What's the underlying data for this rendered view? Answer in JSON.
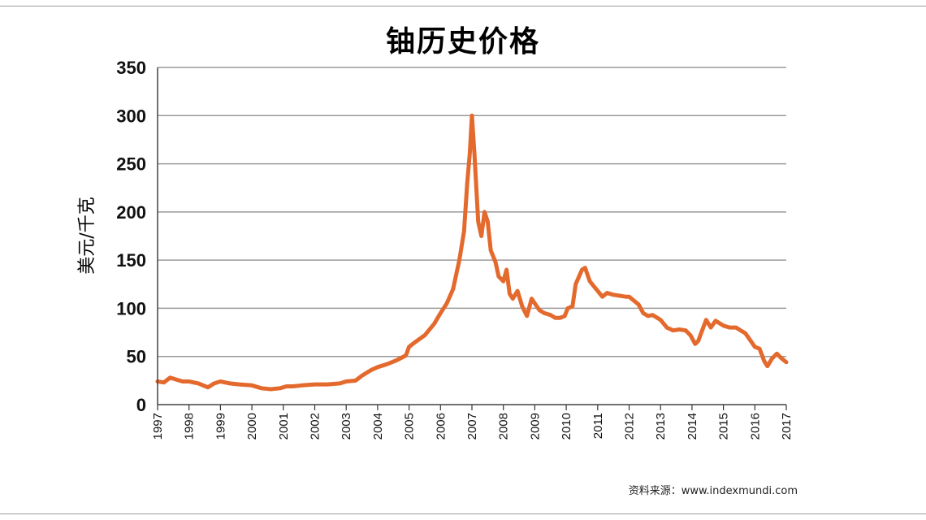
{
  "chart_data": {
    "type": "line",
    "title": "铀历史价格",
    "ylabel": "美元/千克",
    "xlabel": "",
    "ylim": [
      0,
      350
    ],
    "xlim": [
      1997,
      2017
    ],
    "yticks": [
      "0",
      "50",
      "100",
      "150",
      "200",
      "250",
      "300",
      "350"
    ],
    "xticks": [
      "1997",
      "1998",
      "1999",
      "2000",
      "2001",
      "2002",
      "2003",
      "2004",
      "2005",
      "2006",
      "2007",
      "2008",
      "2009",
      "2010",
      "2011",
      "2012",
      "2013",
      "2014",
      "2015",
      "2016",
      "2017"
    ],
    "grid": true,
    "source": "资料来源：www.indexmundi.com",
    "series": [
      {
        "color": "#e4692d",
        "points": [
          [
            1997.0,
            24
          ],
          [
            1997.2,
            23
          ],
          [
            1997.4,
            28
          ],
          [
            1997.6,
            26
          ],
          [
            1997.8,
            24
          ],
          [
            1998.0,
            24
          ],
          [
            1998.3,
            22
          ],
          [
            1998.6,
            18
          ],
          [
            1998.8,
            22
          ],
          [
            1999.0,
            24
          ],
          [
            1999.3,
            22
          ],
          [
            1999.6,
            21
          ],
          [
            2000.0,
            20
          ],
          [
            2000.3,
            17
          ],
          [
            2000.6,
            16
          ],
          [
            2000.9,
            17
          ],
          [
            2001.1,
            19
          ],
          [
            2001.3,
            19
          ],
          [
            2001.6,
            20
          ],
          [
            2002.0,
            21
          ],
          [
            2002.4,
            21
          ],
          [
            2002.8,
            22
          ],
          [
            2003.0,
            24
          ],
          [
            2003.3,
            25
          ],
          [
            2003.5,
            30
          ],
          [
            2003.8,
            36
          ],
          [
            2004.0,
            39
          ],
          [
            2004.3,
            42
          ],
          [
            2004.6,
            46
          ],
          [
            2004.9,
            51
          ],
          [
            2005.0,
            60
          ],
          [
            2005.2,
            65
          ],
          [
            2005.5,
            72
          ],
          [
            2005.8,
            84
          ],
          [
            2006.0,
            95
          ],
          [
            2006.2,
            105
          ],
          [
            2006.4,
            120
          ],
          [
            2006.6,
            150
          ],
          [
            2006.75,
            180
          ],
          [
            2006.85,
            230
          ],
          [
            2006.93,
            260
          ],
          [
            2007.0,
            300
          ],
          [
            2007.08,
            260
          ],
          [
            2007.2,
            190
          ],
          [
            2007.3,
            175
          ],
          [
            2007.4,
            200
          ],
          [
            2007.5,
            190
          ],
          [
            2007.6,
            160
          ],
          [
            2007.75,
            148
          ],
          [
            2007.85,
            133
          ],
          [
            2008.0,
            128
          ],
          [
            2008.1,
            140
          ],
          [
            2008.2,
            115
          ],
          [
            2008.3,
            110
          ],
          [
            2008.45,
            118
          ],
          [
            2008.6,
            102
          ],
          [
            2008.75,
            92
          ],
          [
            2008.9,
            110
          ],
          [
            2009.0,
            105
          ],
          [
            2009.15,
            98
          ],
          [
            2009.3,
            95
          ],
          [
            2009.5,
            93
          ],
          [
            2009.65,
            90
          ],
          [
            2009.8,
            90
          ],
          [
            2009.95,
            92
          ],
          [
            2010.05,
            100
          ],
          [
            2010.2,
            102
          ],
          [
            2010.3,
            125
          ],
          [
            2010.5,
            140
          ],
          [
            2010.6,
            142
          ],
          [
            2010.75,
            128
          ],
          [
            2010.9,
            122
          ],
          [
            2011.0,
            118
          ],
          [
            2011.15,
            112
          ],
          [
            2011.3,
            116
          ],
          [
            2011.5,
            114
          ],
          [
            2011.7,
            113
          ],
          [
            2011.9,
            112
          ],
          [
            2012.0,
            112
          ],
          [
            2012.15,
            108
          ],
          [
            2012.3,
            104
          ],
          [
            2012.45,
            95
          ],
          [
            2012.6,
            92
          ],
          [
            2012.75,
            93
          ],
          [
            2012.9,
            90
          ],
          [
            2013.0,
            88
          ],
          [
            2013.2,
            80
          ],
          [
            2013.4,
            77
          ],
          [
            2013.6,
            78
          ],
          [
            2013.8,
            77
          ],
          [
            2013.95,
            72
          ],
          [
            2014.1,
            63
          ],
          [
            2014.2,
            66
          ],
          [
            2014.3,
            75
          ],
          [
            2014.45,
            88
          ],
          [
            2014.6,
            80
          ],
          [
            2014.75,
            87
          ],
          [
            2014.9,
            84
          ],
          [
            2015.0,
            82
          ],
          [
            2015.2,
            80
          ],
          [
            2015.4,
            80
          ],
          [
            2015.55,
            77
          ],
          [
            2015.7,
            74
          ],
          [
            2015.85,
            67
          ],
          [
            2016.0,
            60
          ],
          [
            2016.15,
            58
          ],
          [
            2016.3,
            45
          ],
          [
            2016.4,
            40
          ],
          [
            2016.55,
            48
          ],
          [
            2016.7,
            53
          ],
          [
            2016.85,
            48
          ],
          [
            2017.0,
            44
          ]
        ]
      }
    ]
  }
}
